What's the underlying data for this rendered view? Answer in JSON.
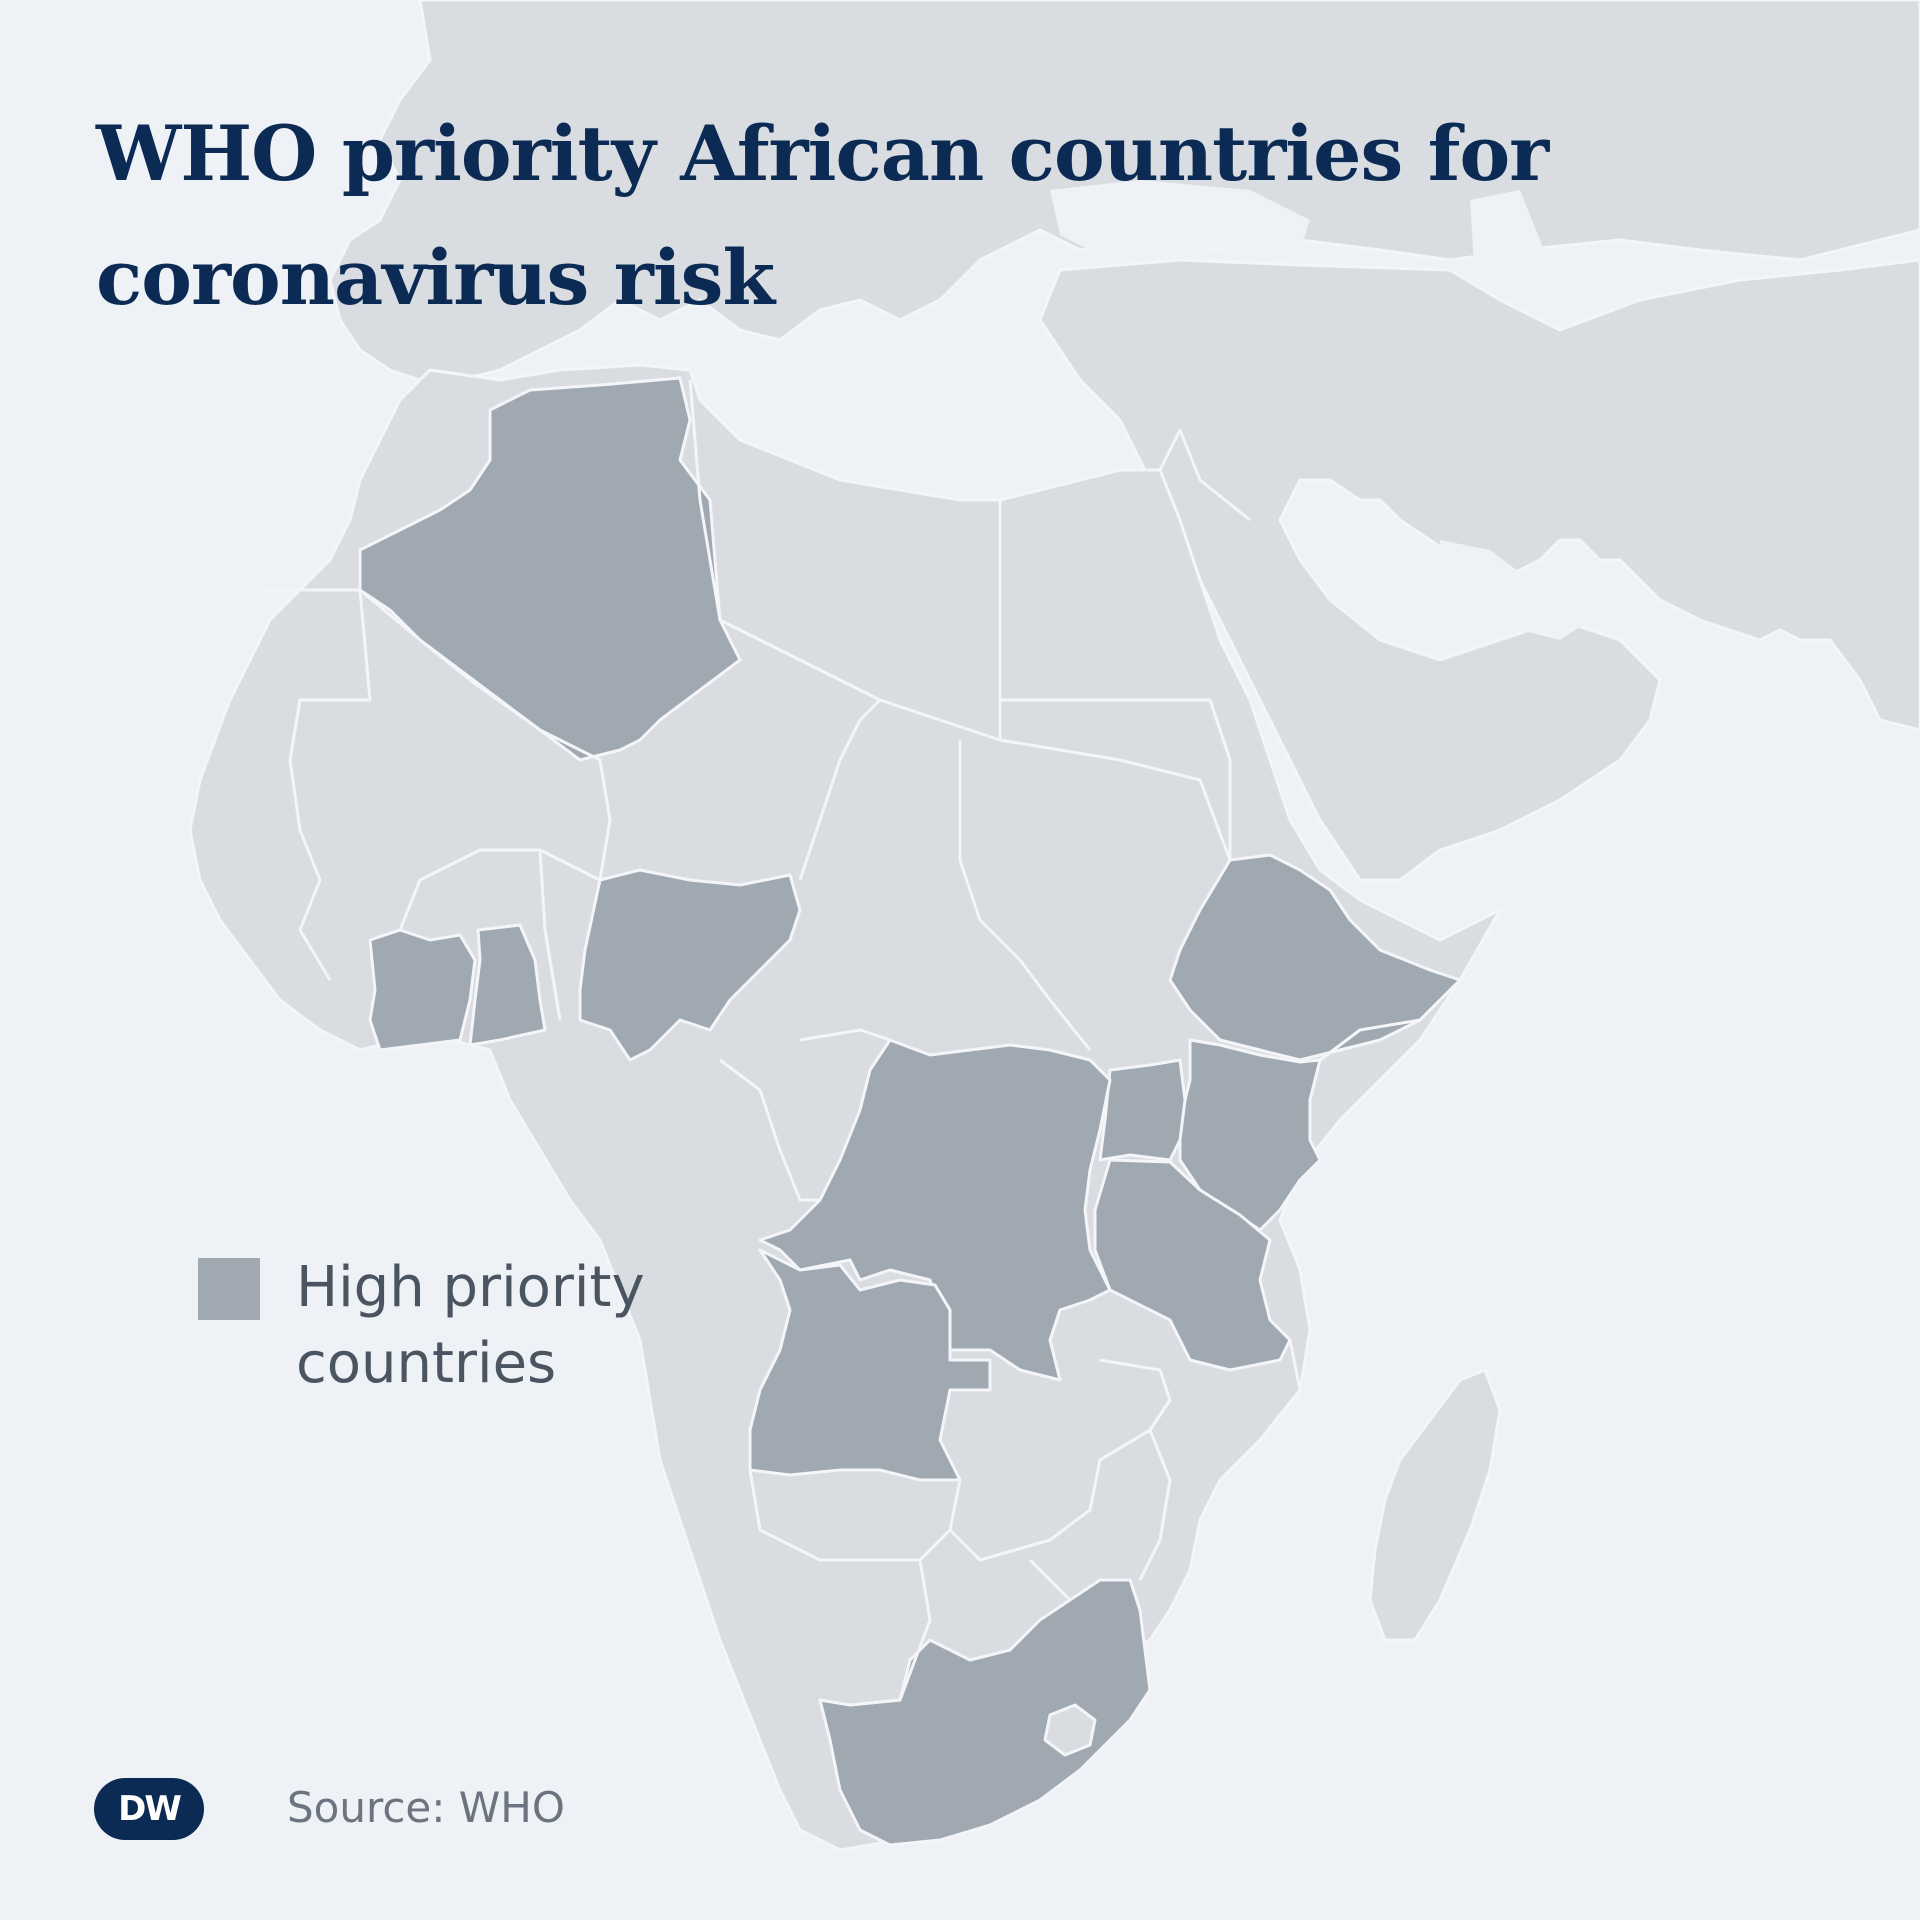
{
  "title": "WHO priority African countries for coronavirus risk",
  "legend": {
    "label": "High priority countries",
    "color": "#a0a9b2"
  },
  "source": "Source: WHO",
  "logo": "DW",
  "colors": {
    "background": "#eef1f5",
    "land": "#d9dde1",
    "priority": "#a0a9b2",
    "title": "#0b2a54"
  },
  "priority_countries": [
    "Algeria",
    "Côte d'Ivoire",
    "Ghana",
    "Nigeria",
    "Ethiopia",
    "Kenya",
    "Uganda",
    "Democratic Republic of the Congo",
    "Tanzania",
    "Angola",
    "South Africa"
  ]
}
